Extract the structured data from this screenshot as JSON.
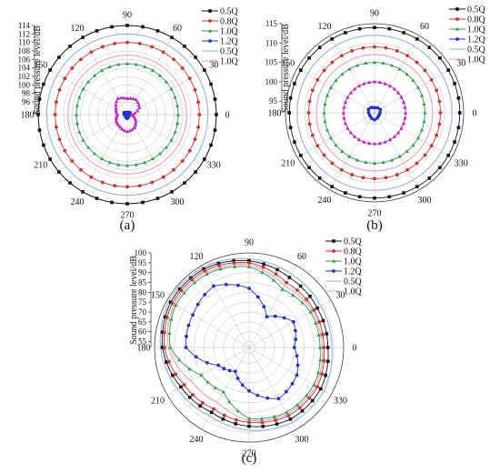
{
  "figure_labels": [
    "(a)",
    "(b)",
    "(c)"
  ],
  "chart_data": [
    {
      "type": "polar-line",
      "panel_label": "(a)",
      "ylabel": "Sound pressure level/dB",
      "rlim": [
        93,
        114
      ],
      "r_ticks": [
        96,
        98,
        100,
        102,
        104,
        106,
        108,
        110,
        112,
        114
      ],
      "angle_ticks": [
        0,
        30,
        60,
        90,
        120,
        150,
        180,
        210,
        240,
        270,
        300,
        330
      ],
      "legend": [
        "0.5Q",
        "0.8Q",
        "1.0Q",
        "1.2Q",
        "0.5Q",
        "1.0Q"
      ],
      "legend_position": "top-right",
      "grid": true,
      "series": [
        {
          "name": "0.5Q",
          "color": "#111111",
          "marker": "square",
          "values": [
            114
          ]
        },
        {
          "name": "0.8Q",
          "color": "#d0312d",
          "marker": "circle",
          "values": [
            110
          ]
        },
        {
          "name": "1.0Q",
          "color": "#2e9e44",
          "marker": "triangle",
          "values": [
            105
          ]
        },
        {
          "name": "1.2Q",
          "color": "#2233cc",
          "marker": "circle",
          "values": [
            93.6,
            93.8,
            93.6,
            93.4,
            93.6,
            93.9,
            93.7,
            93.5,
            93.7,
            93.9,
            93.6,
            93.4
          ]
        },
        {
          "name": "0.5Q",
          "color": "#8fb3ee",
          "marker": "none",
          "values": [
            112
          ]
        },
        {
          "name": "1.0Q",
          "color": "#e9a0c2",
          "marker": "none",
          "values": [
            107
          ]
        },
        {
          "name": "",
          "color": "#c020c0",
          "marker": "triangle",
          "values": [
            94,
            96.3,
            97.1,
            96.8,
            97.4,
            96.1,
            95.3,
            96,
            96.4,
            97,
            96.5,
            95.2
          ]
        }
      ]
    },
    {
      "type": "polar-line",
      "panel_label": "(b)",
      "ylabel": "Sound pressure level/dB",
      "rlim": [
        92,
        115
      ],
      "r_ticks": [
        95,
        100,
        105,
        110,
        115
      ],
      "angle_ticks": [
        0,
        30,
        60,
        90,
        120,
        150,
        180,
        210,
        240,
        270,
        300,
        330
      ],
      "legend": [
        "0.5Q",
        "0.8Q",
        "1.0Q",
        "1.2Q",
        "0.5Q",
        "1.0Q"
      ],
      "legend_position": "top-right",
      "grid": true,
      "series": [
        {
          "name": "0.5Q",
          "color": "#111111",
          "marker": "square",
          "values": [
            114
          ]
        },
        {
          "name": "0.8Q",
          "color": "#d0312d",
          "marker": "circle",
          "values": [
            109
          ]
        },
        {
          "name": "1.0Q",
          "color": "#2e9e44",
          "marker": "triangle",
          "values": [
            105
          ]
        },
        {
          "name": "1.2Q",
          "color": "#2233cc",
          "marker": "circle",
          "values": [
            93.4,
            93.7,
            93.5,
            93.3,
            93.6,
            93.8,
            93.5,
            93.4,
            93.6,
            93.8,
            93.5,
            93.3
          ]
        },
        {
          "name": "0.5Q",
          "color": "#8fb3ee",
          "marker": "none",
          "values": [
            112
          ]
        },
        {
          "name": "1.0Q",
          "color": "#e9a0c2",
          "marker": "none",
          "values": [
            107
          ]
        },
        {
          "name": "",
          "color": "#c020c0",
          "marker": "triangle",
          "values": [
            100
          ]
        }
      ]
    },
    {
      "type": "polar-line",
      "panel_label": "(c)",
      "ylabel": "Sound pressure level/dB",
      "rlim": [
        52,
        100
      ],
      "r_ticks": [
        55,
        60,
        65,
        70,
        75,
        80,
        85,
        90,
        95,
        100
      ],
      "angle_ticks": [
        0,
        30,
        60,
        90,
        120,
        150,
        180,
        210,
        240,
        270,
        300,
        330
      ],
      "legend": [
        "0.5Q",
        "0.8Q",
        "1.0Q",
        "1.2Q",
        "0.5Q",
        "1.0Q"
      ],
      "legend_position": "top-right",
      "grid": true,
      "series": [
        {
          "name": "0.5Q",
          "color": "#111111",
          "marker": "square",
          "values": [
            92,
            92,
            93,
            96,
            98,
            98,
            96,
            92,
            90,
            92,
            94,
            94
          ]
        },
        {
          "name": "0.8Q",
          "color": "#d0312d",
          "marker": "circle",
          "values": [
            90,
            90,
            90,
            95,
            97,
            97,
            95,
            90,
            88,
            90,
            92,
            92
          ]
        },
        {
          "name": "1.0Q",
          "color": "#2e9e44",
          "marker": "triangle",
          "values": [
            88,
            88,
            86,
            93,
            95,
            95,
            92,
            80,
            78,
            88,
            90,
            90
          ]
        },
        {
          "name": "1.2Q",
          "color": "#2233cc",
          "marker": "circle",
          "values": [
            75,
            78,
            70,
            82,
            88,
            85,
            84,
            70,
            66,
            74,
            82,
            80
          ]
        },
        {
          "name": "0.5Q",
          "color": "#8fb3ee",
          "marker": "none",
          "values": [
            94,
            94,
            95,
            97,
            99,
            99,
            97,
            94,
            92,
            94,
            96,
            96
          ]
        },
        {
          "name": "1.0Q",
          "color": "#e9a0c2",
          "marker": "none",
          "values": [
            89,
            89,
            88,
            94,
            96,
            96,
            93,
            86,
            84,
            89,
            91,
            91
          ]
        }
      ]
    }
  ]
}
